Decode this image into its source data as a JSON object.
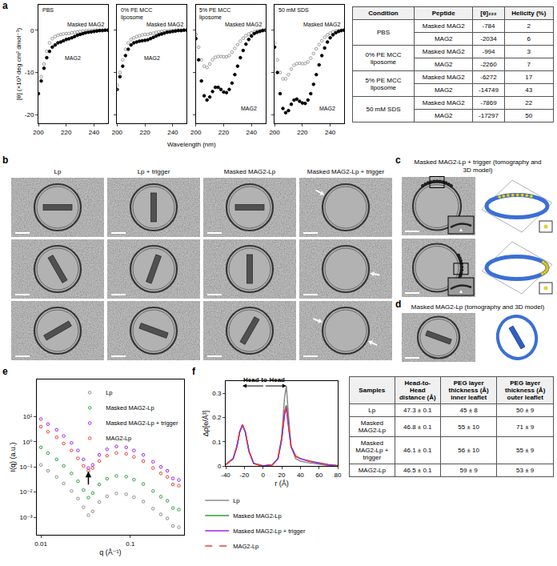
{
  "chart_data": [
    {
      "panel": "a",
      "type": "scatter",
      "xlabel": "Wavelength (nm)",
      "ylabel": "[θ] (×10³ deg cm² dmol⁻¹)",
      "xlim": [
        200,
        250
      ],
      "xticks": [
        200,
        220,
        240
      ],
      "ylim": [
        -22,
        6
      ],
      "yticks": [
        -20,
        -10,
        0
      ],
      "x": [
        200,
        202,
        204,
        206,
        208,
        210,
        212,
        214,
        216,
        218,
        220,
        222,
        224,
        226,
        228,
        230,
        232,
        234,
        236,
        238,
        240,
        242,
        244,
        246,
        248,
        250
      ],
      "subplots": [
        {
          "title": "PBS",
          "series": [
            {
              "name": "Masked MAG2",
              "color": "#9a9a9a",
              "marker": "open circle",
              "values": [
                -15,
                -11,
                -8,
                -5,
                -3,
                -2,
                -1.5,
                -1.2,
                -1,
                -0.9,
                -0.8,
                -0.78,
                -0.6,
                -0.5,
                -0.4,
                -0.3,
                -0.2,
                -0.2,
                -0.1,
                -0.1,
                0,
                0,
                0,
                0,
                0,
                0
              ]
            },
            {
              "name": "MAG2",
              "color": "#000000",
              "marker": "circle",
              "values": [
                -15,
                -12,
                -9,
                -6.5,
                -5,
                -4,
                -3.5,
                -3,
                -2.8,
                -2.5,
                -2.2,
                -2.03,
                -1.8,
                -1.5,
                -1.2,
                -1,
                -0.8,
                -0.6,
                -0.5,
                -0.4,
                -0.3,
                -0.2,
                -0.1,
                -0.1,
                0,
                0
              ]
            }
          ]
        },
        {
          "title": "0% PE MCC liposome",
          "series": [
            {
              "name": "Masked MAG2",
              "color": "#9a9a9a",
              "marker": "open circle",
              "values": [
                -13,
                -10,
                -7,
                -4.5,
                -3,
                -2.2,
                -1.8,
                -1.5,
                -1.3,
                -1.1,
                -1,
                -0.99,
                -0.8,
                -0.7,
                -0.5,
                -0.4,
                -0.3,
                -0.2,
                -0.2,
                -0.1,
                -0.1,
                0,
                0,
                0,
                0,
                0
              ]
            },
            {
              "name": "MAG2",
              "color": "#000000",
              "marker": "circle",
              "values": [
                -14,
                -11,
                -8.5,
                -6,
                -4.5,
                -3.5,
                -3,
                -2.8,
                -2.6,
                -2.5,
                -2.4,
                -2.26,
                -2,
                -1.7,
                -1.4,
                -1.1,
                -0.9,
                -0.7,
                -0.5,
                -0.4,
                -0.3,
                -0.2,
                -0.1,
                -0.1,
                0,
                0
              ]
            }
          ]
        },
        {
          "title": "5% PE MCC liposome",
          "series": [
            {
              "name": "Masked MAG2",
              "color": "#9a9a9a",
              "marker": "open circle",
              "values": [
                -1,
                -4,
                -7,
                -8.5,
                -8.8,
                -8,
                -7,
                -6.4,
                -6.2,
                -6.2,
                -6.3,
                -6.27,
                -6,
                -5.2,
                -4.3,
                -3.4,
                -2.6,
                -1.9,
                -1.3,
                -0.9,
                -0.6,
                -0.4,
                -0.2,
                -0.1,
                0,
                0
              ]
            },
            {
              "name": "MAG2",
              "color": "#000000",
              "marker": "circle",
              "values": [
                -2,
                -7,
                -12,
                -15.5,
                -16.5,
                -15.8,
                -14.5,
                -13.5,
                -13.5,
                -14,
                -14.6,
                -14.75,
                -14,
                -12.5,
                -10.5,
                -8.5,
                -6.5,
                -4.8,
                -3.3,
                -2.2,
                -1.4,
                -0.8,
                -0.5,
                -0.3,
                -0.1,
                0
              ]
            }
          ]
        },
        {
          "title": "50 mM SDS",
          "series": [
            {
              "name": "Masked MAG2",
              "color": "#9a9a9a",
              "marker": "open circle",
              "values": [
                -3,
                -7,
                -10,
                -11.5,
                -11.5,
                -10.5,
                -9.2,
                -8.3,
                -7.9,
                -7.8,
                -7.9,
                -7.87,
                -7.5,
                -6.6,
                -5.5,
                -4.4,
                -3.4,
                -2.5,
                -1.7,
                -1.1,
                -0.7,
                -0.4,
                -0.2,
                -0.1,
                0,
                0
              ]
            },
            {
              "name": "MAG2",
              "color": "#000000",
              "marker": "circle",
              "values": [
                -4,
                -10,
                -15,
                -18.5,
                -19.5,
                -19,
                -17.5,
                -16.5,
                -16.3,
                -16.8,
                -17.2,
                -17.3,
                -16.5,
                -15,
                -12.8,
                -10.5,
                -8.2,
                -6,
                -4.2,
                -2.8,
                -1.8,
                -1.1,
                -0.6,
                -0.3,
                -0.1,
                0
              ]
            }
          ]
        }
      ]
    },
    {
      "panel": "e",
      "type": "scatter",
      "xlabel": "q (Å⁻¹)",
      "ylabel": "I(q) (a.u.)",
      "log": true,
      "xlim": [
        0.009,
        0.4
      ],
      "xticks": [
        0.01,
        0.1
      ],
      "ylim": [
        0.0002,
        300
      ],
      "yticks": [
        {
          "value": 0.001,
          "label": "10⁻³"
        },
        {
          "value": 0.01,
          "label": "10⁻²"
        },
        {
          "value": 0.1,
          "label": "10⁻¹"
        },
        {
          "value": 1,
          "label": "10⁰"
        },
        {
          "value": 10,
          "label": "10¹"
        }
      ],
      "legend": "top right",
      "x": [
        0.01,
        0.012,
        0.015,
        0.018,
        0.022,
        0.026,
        0.03,
        0.034,
        0.038,
        0.045,
        0.055,
        0.07,
        0.09,
        0.11,
        0.14,
        0.18,
        0.22,
        0.26,
        0.3,
        0.35
      ],
      "series": [
        {
          "name": "Lp",
          "color": "#8c8c8c",
          "marker": "open circle",
          "values": [
            0.12,
            0.07,
            0.04,
            0.022,
            0.011,
            0.0055,
            0.0025,
            0.0012,
            0.0017,
            0.004,
            0.0068,
            0.0088,
            0.0082,
            0.0062,
            0.0042,
            0.0022,
            0.0013,
            0.0009,
            0.00045,
            0.0004
          ]
        },
        {
          "name": "Masked MAG2-Lp",
          "color": "#2e9e3e",
          "marker": "open circle",
          "values": [
            0.6,
            0.35,
            0.2,
            0.11,
            0.055,
            0.027,
            0.012,
            0.006,
            0.009,
            0.02,
            0.034,
            0.044,
            0.041,
            0.031,
            0.021,
            0.011,
            0.0065,
            0.0045,
            0.0023,
            0.002
          ]
        },
        {
          "name": "Masked MAG2-Lp + trigger",
          "color": "#a020f0",
          "marker": "open circle",
          "values": [
            8,
            5,
            3,
            1.7,
            0.9,
            0.45,
            0.2,
            0.09,
            0.12,
            0.3,
            0.5,
            0.65,
            0.6,
            0.45,
            0.3,
            0.16,
            0.1,
            0.07,
            0.035,
            0.03
          ]
        },
        {
          "name": "MAG2-Lp",
          "color": "#e8403a",
          "marker": "open circle",
          "values": [
            4,
            2.5,
            1.5,
            0.85,
            0.45,
            0.22,
            0.11,
            0.07,
            0.09,
            0.17,
            0.28,
            0.36,
            0.33,
            0.25,
            0.17,
            0.09,
            0.055,
            0.04,
            0.02,
            0.018
          ]
        }
      ]
    },
    {
      "panel": "f",
      "type": "line",
      "xlabel": "r (Å)",
      "ylabel": "Δρ[e/Å³]",
      "xlim": [
        -40,
        80
      ],
      "xticks": [
        -40,
        -20,
        0,
        20,
        40,
        60,
        80
      ],
      "ylim": [
        0,
        0.35
      ],
      "yticks": [
        0,
        0.1,
        0.2,
        0.3
      ],
      "legend": "bottom",
      "annotation": "Head-to-Head",
      "x": [
        -40,
        -32,
        -28,
        -25,
        -22,
        -19,
        -15,
        -10,
        0,
        10,
        16,
        20,
        23,
        25,
        27,
        30,
        35,
        40,
        50,
        60,
        70,
        80
      ],
      "series": [
        {
          "name": "Lp",
          "color": "#8c8c8c",
          "line_style": "solid",
          "values": [
            0.005,
            0.03,
            0.08,
            0.14,
            0.17,
            0.14,
            0.06,
            0.01,
            0,
            0.005,
            0.03,
            0.12,
            0.28,
            0.33,
            0.22,
            0.08,
            0.03,
            0.02,
            0.012,
            0.006,
            0.002,
            0
          ]
        },
        {
          "name": "Masked MAG2-Lp",
          "color": "#2e9e3e",
          "line_style": "solid",
          "values": [
            0.005,
            0.03,
            0.08,
            0.14,
            0.17,
            0.14,
            0.06,
            0.01,
            0,
            0.005,
            0.03,
            0.11,
            0.22,
            0.25,
            0.18,
            0.08,
            0.04,
            0.03,
            0.02,
            0.012,
            0.006,
            0.002
          ]
        },
        {
          "name": "Masked MAG2-Lp + trigger",
          "color": "#a020f0",
          "line_style": "solid",
          "values": [
            0.005,
            0.03,
            0.08,
            0.14,
            0.17,
            0.14,
            0.06,
            0.01,
            0,
            0.005,
            0.03,
            0.11,
            0.21,
            0.24,
            0.17,
            0.08,
            0.04,
            0.03,
            0.018,
            0.01,
            0.004,
            0.001
          ]
        },
        {
          "name": "MAG2-Lp",
          "color": "#e8403a",
          "line_style": "dashed",
          "values": [
            0.005,
            0.03,
            0.08,
            0.14,
            0.17,
            0.14,
            0.06,
            0.01,
            0,
            0.005,
            0.03,
            0.11,
            0.22,
            0.25,
            0.18,
            0.08,
            0.04,
            0.03,
            0.02,
            0.011,
            0.005,
            0.001
          ]
        }
      ]
    }
  ],
  "table_a": {
    "header": [
      "Condition",
      "Peptide",
      "[θ]₂₂₂",
      "Helicity (%)"
    ],
    "groups": [
      {
        "condition": "PBS",
        "rows": [
          [
            "Masked MAG2",
            -784,
            2
          ],
          [
            "MAG2",
            -2034,
            6
          ]
        ]
      },
      {
        "condition": "0% PE MCC liposome",
        "rows": [
          [
            "Masked MAG2",
            -994,
            3
          ],
          [
            "MAG2",
            -2260,
            7
          ]
        ]
      },
      {
        "condition": "5% PE MCC liposome",
        "rows": [
          [
            "Masked MAG2",
            -6272,
            17
          ],
          [
            "MAG2",
            -14749,
            43
          ]
        ]
      },
      {
        "condition": "50 mM SDS",
        "rows": [
          [
            "Masked MAG2",
            -7869,
            22
          ],
          [
            "MAG2",
            -17297,
            50
          ]
        ]
      }
    ]
  },
  "micrographs_b": {
    "panel": "b",
    "columns": [
      "Lp",
      "Lp + trigger",
      "Masked MAG2-Lp",
      "Masked MAG2-Lp + trigger"
    ]
  },
  "tomography_c": {
    "panel": "c",
    "title": "Masked MAG2-Lp + trigger (tomography and 3D model)"
  },
  "tomography_d": {
    "panel": "d",
    "title": "Masked MAG2-Lp (tomography and 3D model)"
  },
  "table_f": {
    "header": [
      "Samples",
      "Head-to-Head distance (Å)",
      "PEG layer thickness (Å) inner leaflet",
      "PEG layer thickness (Å) outer leaflet"
    ],
    "rows": [
      [
        "Lp",
        "47.3 ± 0.1",
        "45 ± 8",
        "50 ± 9"
      ],
      [
        "Masked MAG2-Lp",
        "46.8 ± 0.1",
        "55 ± 10",
        "71 ± 9"
      ],
      [
        "Masked MAG2-Lp + trigger",
        "46.1 ± 0.1",
        "56 ± 10",
        "55 ± 9"
      ],
      [
        "MAG2-Lp",
        "46.5 ± 0.1",
        "59 ± 9",
        "53 ± 9"
      ]
    ]
  }
}
